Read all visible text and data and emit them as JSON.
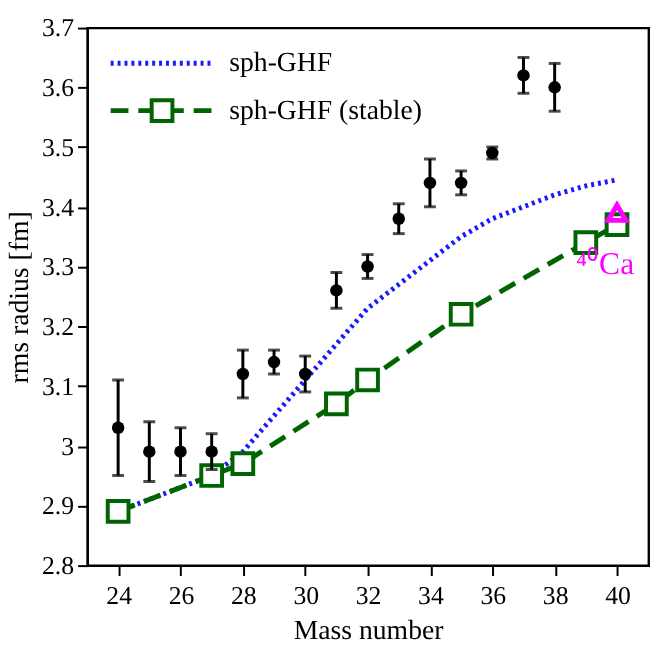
{
  "chart_data": {
    "type": "line",
    "xlabel": "Mass number",
    "ylabel": "rms radius [fm]",
    "xlim": [
      23,
      41
    ],
    "xticks": [
      24,
      26,
      28,
      30,
      32,
      34,
      36,
      38,
      40
    ],
    "ylim": [
      2.8,
      3.7
    ],
    "yticks": [
      2.8,
      2.9,
      {
        "value": 3.0,
        "label": "3"
      },
      3.1,
      3.2,
      3.3,
      3.4,
      3.5,
      3.6,
      3.7
    ],
    "grid": false,
    "legend": "top left",
    "series": [
      {
        "name": "sph-GHF",
        "type": "line",
        "color": "#1a1aff",
        "line_style": "dotted",
        "marker": "none",
        "x": [
          24,
          26,
          27,
          28,
          29,
          30,
          31,
          32,
          33,
          34,
          35,
          36,
          37,
          38,
          39,
          40
        ],
        "values": [
          2.89,
          2.93,
          2.95,
          2.99,
          3.05,
          3.11,
          3.17,
          3.23,
          3.27,
          3.31,
          3.35,
          3.38,
          3.4,
          3.42,
          3.435,
          3.445
        ]
      },
      {
        "name": "sph-GHF (stable)",
        "type": "line",
        "color": "#006400",
        "line_style": "dashed",
        "marker": "square",
        "x": [
          24,
          27,
          28,
          31,
          32,
          35,
          39,
          40
        ],
        "values": [
          2.89,
          2.95,
          2.97,
          3.07,
          3.11,
          3.22,
          3.34,
          3.37
        ]
      },
      {
        "type": "scatter",
        "color": "#000000",
        "marker": "circle",
        "x": [
          24,
          25,
          26,
          27,
          28,
          29,
          30,
          31,
          32,
          33,
          34,
          35,
          36,
          37,
          38
        ],
        "values": [
          3.03,
          2.99,
          2.99,
          2.99,
          3.12,
          3.14,
          3.12,
          3.26,
          3.3,
          3.38,
          3.44,
          3.44,
          3.49,
          3.62,
          3.6
        ],
        "errors": [
          0.08,
          0.05,
          0.04,
          0.03,
          0.04,
          0.02,
          0.03,
          0.03,
          0.02,
          0.025,
          0.04,
          0.02,
          0.01,
          0.03,
          0.04
        ]
      },
      {
        "type": "scatter",
        "color": "#ff00ff",
        "marker": "triangle",
        "x": [
          40
        ],
        "values": [
          3.39
        ]
      }
    ],
    "annotations": [
      {
        "text": "⁴⁰Ca",
        "x": 40,
        "y": 3.39
      }
    ]
  }
}
